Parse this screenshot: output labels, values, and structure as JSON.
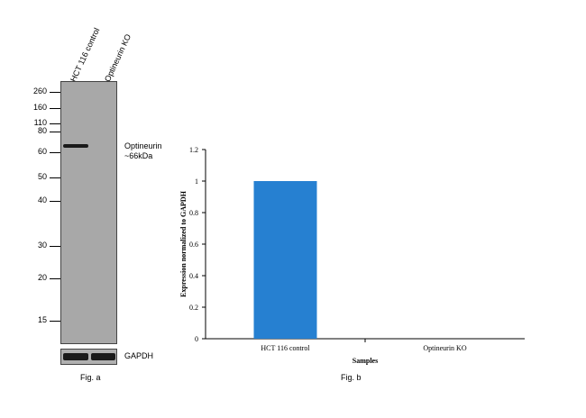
{
  "blot": {
    "lanes": [
      "HCT 116 control",
      "Optineurin KO"
    ],
    "markers": [
      "260",
      "160",
      "110",
      "80",
      "60",
      "50",
      "40",
      "30",
      "20",
      "15"
    ],
    "target_label_line1": "Optineurin",
    "target_label_line2": "~66kDa",
    "loading_label": "GAPDH",
    "caption": "Fig. a"
  },
  "chart_caption": "Fig. b",
  "chart_data": {
    "type": "bar",
    "categories": [
      "HCT 116 control",
      "Optineurin KO"
    ],
    "values": [
      1,
      0
    ],
    "xlabel": "Samples",
    "ylabel": "Expression normalized to GAPDH",
    "ylim": [
      0,
      1.2
    ],
    "yticks": [
      "0",
      "0.2",
      "0.4",
      "0.6",
      "0.8",
      "1",
      "1.2"
    ],
    "bar_color": "#2680d1",
    "grid": false
  }
}
